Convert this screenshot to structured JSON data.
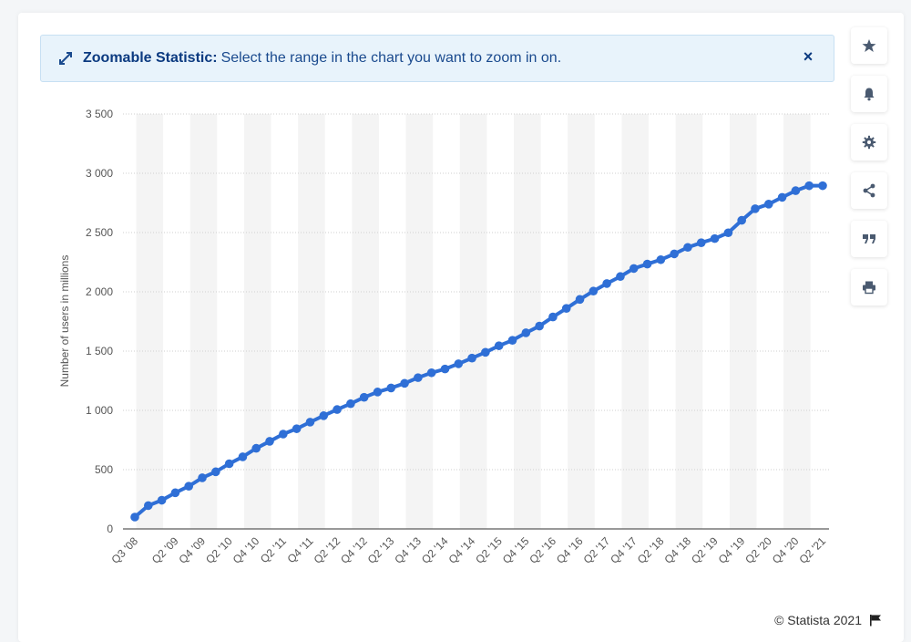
{
  "notice": {
    "label": "Zoomable Statistic:",
    "message": "Select the range in the chart you want to zoom in on.",
    "close_symbol": "×"
  },
  "sidebar": {
    "buttons": [
      {
        "icon": "star-icon"
      },
      {
        "icon": "bell-icon"
      },
      {
        "icon": "gear-icon"
      },
      {
        "icon": "share-icon"
      },
      {
        "icon": "quote-icon"
      },
      {
        "icon": "print-icon"
      }
    ]
  },
  "footer": {
    "copyright": "© Statista 2021"
  },
  "colors": {
    "line": "#2f6fd6",
    "grid": "#cfcfcf",
    "band": "#f4f4f4",
    "accent": "#0b3a80"
  },
  "chart_data": {
    "type": "line",
    "ylabel": "Number of users in millions",
    "xlabel": "",
    "ylim": [
      0,
      3500
    ],
    "yticks": [
      0,
      500,
      1000,
      1500,
      2000,
      2500,
      3000,
      3500
    ],
    "ytick_labels": [
      "0",
      "500",
      "1 000",
      "1 500",
      "2 000",
      "2 500",
      "3 000",
      "3 500"
    ],
    "categories": [
      "Q3 '08",
      "Q4 '08",
      "Q1 '09",
      "Q2 '09",
      "Q3 '09",
      "Q4 '09",
      "Q1 '10",
      "Q2 '10",
      "Q3 '10",
      "Q4 '10",
      "Q1 '11",
      "Q2 '11",
      "Q3 '11",
      "Q4 '11",
      "Q1 '12",
      "Q2 '12",
      "Q3 '12",
      "Q4 '12",
      "Q1 '13",
      "Q2 '13",
      "Q3 '13",
      "Q4 '13",
      "Q1 '14",
      "Q2 '14",
      "Q3 '14",
      "Q4 '14",
      "Q1 '15",
      "Q2 '15",
      "Q3 '15",
      "Q4 '15",
      "Q1 '16",
      "Q2 '16",
      "Q3 '16",
      "Q4 '16",
      "Q1 '17",
      "Q2 '17",
      "Q3 '17",
      "Q4 '17",
      "Q1 '18",
      "Q2 '18",
      "Q3 '18",
      "Q4 '18",
      "Q1 '19",
      "Q2 '19",
      "Q3 '19",
      "Q4 '19",
      "Q1 '20",
      "Q2 '20",
      "Q3 '20",
      "Q4 '20",
      "Q1 '21",
      "Q2 '21"
    ],
    "visible_xtick_labels": [
      "Q3 '08",
      "Q2 '09",
      "Q4 '09",
      "Q2 '10",
      "Q4 '10",
      "Q2 '11",
      "Q4 '11",
      "Q2 '12",
      "Q4 '12",
      "Q2 '13",
      "Q4 '13",
      "Q2 '14",
      "Q4 '14",
      "Q2 '15",
      "Q4 '15",
      "Q2 '16",
      "Q4 '16",
      "Q2 '17",
      "Q4 '17",
      "Q2 '18",
      "Q4 '18",
      "Q2 '19",
      "Q4 '19",
      "Q2 '20",
      "Q4 '20",
      "Q2 '21"
    ],
    "values": [
      100,
      197,
      242,
      305,
      360,
      431,
      482,
      550,
      608,
      680,
      739,
      800,
      845,
      901,
      955,
      1007,
      1056,
      1110,
      1155,
      1189,
      1228,
      1276,
      1317,
      1349,
      1393,
      1441,
      1490,
      1545,
      1591,
      1654,
      1711,
      1788,
      1860,
      1936,
      2006,
      2070,
      2129,
      2197,
      2234,
      2271,
      2320,
      2375,
      2414,
      2449,
      2498,
      2603,
      2701,
      2740,
      2797,
      2853,
      2895,
      2895
    ],
    "grid": true,
    "legend": "none"
  }
}
